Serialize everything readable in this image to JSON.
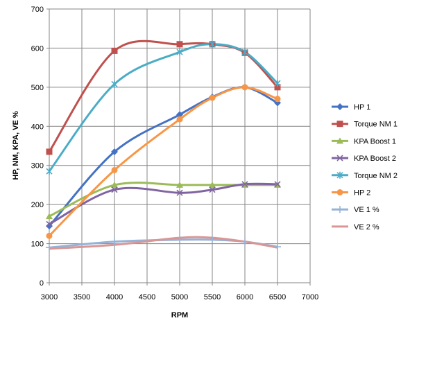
{
  "chart_data": {
    "type": "line",
    "title": "",
    "xlabel": "RPM",
    "ylabel": "HP, NM, KPA, VE %",
    "xlim": [
      3000,
      7000
    ],
    "ylim": [
      0,
      700
    ],
    "x_ticks": [
      3000,
      3500,
      4000,
      4500,
      5000,
      5500,
      6000,
      6500,
      7000
    ],
    "y_ticks": [
      0,
      100,
      200,
      300,
      400,
      500,
      600,
      700
    ],
    "x_tick_labels": [
      "3000",
      "3500",
      "4000",
      "4500",
      "5000",
      "5500",
      "6000",
      "6500",
      "7000"
    ],
    "y_tick_labels": [
      "0",
      "100",
      "200",
      "300",
      "400",
      "500",
      "600",
      "700"
    ],
    "grid": "vertical-and-horizontal",
    "legend_position": "right",
    "smooth": true,
    "x": [
      3000,
      4000,
      5000,
      5500,
      6000,
      6500
    ],
    "series": [
      {
        "name": "HP 1",
        "values": [
          145,
          335,
          430,
          475,
          500,
          460
        ],
        "color": "#4472C4",
        "marker": "diamond"
      },
      {
        "name": "Torque NM 1",
        "values": [
          335,
          593,
          610,
          610,
          588,
          500
        ],
        "color": "#C0504D",
        "marker": "square"
      },
      {
        "name": "KPA Boost 1",
        "values": [
          170,
          250,
          250,
          250,
          250,
          250
        ],
        "color": "#9BBB59",
        "marker": "triangle"
      },
      {
        "name": "KPA Boost 2",
        "values": [
          150,
          238,
          230,
          238,
          252,
          252
        ],
        "color": "#8064A2",
        "marker": "x"
      },
      {
        "name": "Torque NM 2",
        "values": [
          285,
          508,
          590,
          610,
          590,
          510
        ],
        "color": "#4BACC6",
        "marker": "star"
      },
      {
        "name": "HP 2",
        "values": [
          120,
          288,
          418,
          473,
          500,
          470
        ],
        "color": "#F79646",
        "marker": "circle"
      },
      {
        "name": "VE 1 %",
        "values": [
          90,
          105,
          110,
          110,
          105,
          92
        ],
        "color": "#95B3D7",
        "marker": "plus"
      },
      {
        "name": "VE 2 %",
        "values": [
          87,
          97,
          115,
          115,
          105,
          90
        ],
        "color": "#D99694",
        "marker": "none"
      }
    ]
  }
}
